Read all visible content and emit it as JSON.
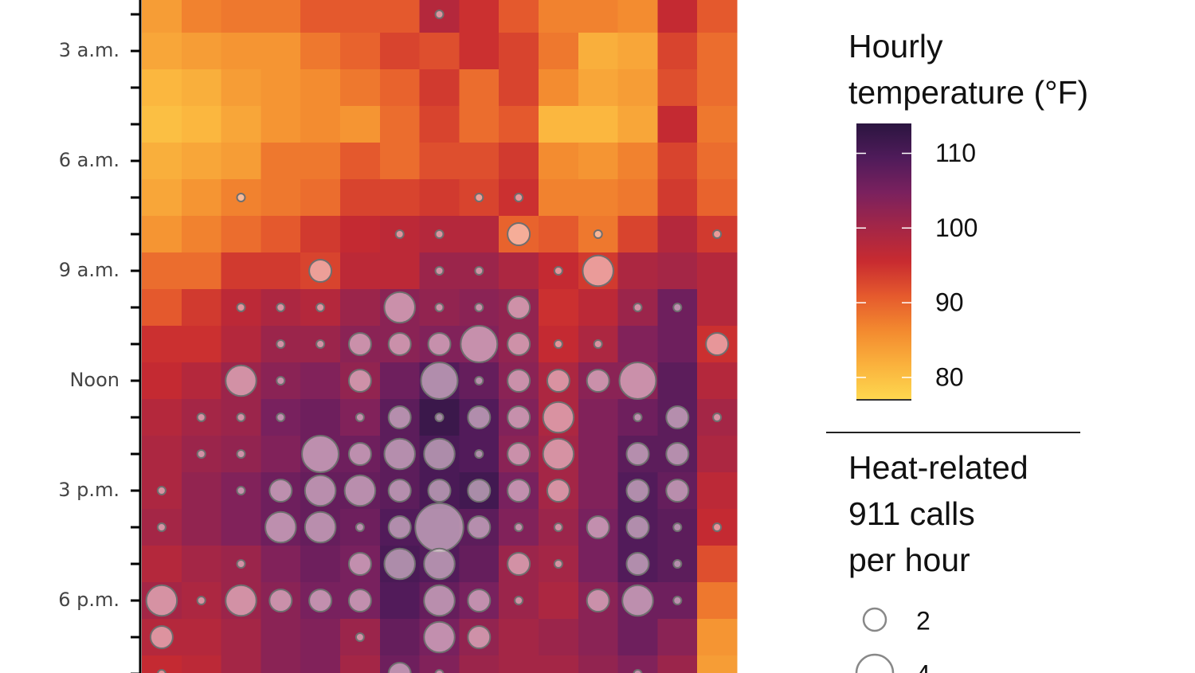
{
  "chart_data": {
    "type": "heatmap",
    "rows": [
      null,
      "3 a.m.",
      null,
      null,
      "6 a.m.",
      null,
      null,
      "9 a.m.",
      null,
      null,
      "Noon",
      null,
      null,
      "3 p.m.",
      null,
      null,
      "6 p.m.",
      null,
      null
    ],
    "columns": [
      null,
      null,
      null,
      null,
      null,
      null,
      null,
      null,
      null,
      null,
      null,
      null,
      null,
      null,
      null
    ],
    "values": [
      [
        84,
        87,
        88,
        88,
        91,
        91,
        91,
        98,
        95,
        91,
        87,
        87,
        86,
        96,
        91
      ],
      [
        83,
        84,
        85,
        85,
        88,
        90,
        93,
        92,
        95,
        93,
        88,
        82,
        83,
        93,
        89
      ],
      [
        81,
        82,
        84,
        85,
        86,
        88,
        90,
        94,
        89,
        93,
        86,
        83,
        84,
        92,
        89
      ],
      [
        80,
        81,
        83,
        85,
        86,
        85,
        89,
        93,
        89,
        91,
        81,
        81,
        83,
        96,
        88
      ],
      [
        82,
        83,
        84,
        88,
        88,
        91,
        89,
        92,
        92,
        94,
        86,
        85,
        87,
        93,
        89
      ],
      [
        83,
        85,
        87,
        88,
        89,
        93,
        93,
        94,
        93,
        95,
        87,
        87,
        88,
        94,
        90
      ],
      [
        85,
        87,
        89,
        91,
        94,
        96,
        97,
        98,
        98,
        90,
        91,
        88,
        93,
        98,
        94
      ],
      [
        89,
        89,
        94,
        94,
        93,
        97,
        97,
        101,
        101,
        99,
        96,
        94,
        99,
        100,
        98
      ],
      [
        91,
        94,
        97,
        99,
        98,
        101,
        103,
        102,
        103,
        102,
        95,
        97,
        101,
        106,
        98
      ],
      [
        95,
        95,
        98,
        101,
        101,
        103,
        103,
        104,
        104,
        102,
        96,
        99,
        104,
        106,
        95
      ],
      [
        96,
        98,
        101,
        103,
        104,
        102,
        106,
        109,
        107,
        103,
        99,
        103,
        103,
        108,
        98
      ],
      [
        98,
        100,
        101,
        105,
        106,
        104,
        108,
        112,
        109,
        104,
        99,
        104,
        106,
        108,
        100
      ],
      [
        99,
        101,
        102,
        104,
        106,
        106,
        108,
        110,
        109,
        103,
        100,
        104,
        108,
        108,
        99
      ],
      [
        99,
        102,
        104,
        106,
        107,
        107,
        108,
        110,
        111,
        105,
        100,
        104,
        109,
        107,
        97
      ],
      [
        100,
        102,
        104,
        106,
        107,
        106,
        109,
        109,
        108,
        104,
        101,
        105,
        109,
        108,
        96
      ],
      [
        98,
        100,
        101,
        104,
        106,
        105,
        110,
        109,
        107,
        101,
        100,
        105,
        109,
        108,
        92
      ],
      [
        100,
        99,
        101,
        103,
        105,
        105,
        109,
        107,
        105,
        101,
        99,
        103,
        106,
        106,
        88
      ],
      [
        98,
        98,
        100,
        103,
        104,
        101,
        107,
        105,
        102,
        100,
        101,
        103,
        106,
        103,
        85
      ],
      [
        96,
        97,
        100,
        103,
        104,
        100,
        106,
        104,
        101,
        100,
        100,
        102,
        104,
        101,
        84
      ]
    ],
    "calls": [
      [
        0,
        0,
        0,
        0,
        0,
        0,
        0,
        1,
        0,
        0,
        0,
        0,
        0,
        0,
        0
      ],
      [
        0,
        0,
        0,
        0,
        0,
        0,
        0,
        0,
        0,
        0,
        0,
        0,
        0,
        0,
        0
      ],
      [
        0,
        0,
        0,
        0,
        0,
        0,
        0,
        0,
        0,
        0,
        0,
        0,
        0,
        0,
        0
      ],
      [
        0,
        0,
        0,
        0,
        0,
        0,
        0,
        0,
        0,
        0,
        0,
        0,
        0,
        0,
        0
      ],
      [
        0,
        0,
        0,
        0,
        0,
        0,
        0,
        0,
        0,
        0,
        0,
        0,
        0,
        0,
        0
      ],
      [
        0,
        0,
        1,
        0,
        0,
        0,
        0,
        0,
        1,
        1,
        0,
        0,
        0,
        0,
        0
      ],
      [
        0,
        0,
        0,
        0,
        0,
        0,
        1,
        1,
        0,
        2,
        0,
        1,
        0,
        0,
        1
      ],
      [
        0,
        0,
        0,
        0,
        2,
        0,
        0,
        1,
        1,
        0,
        1,
        3,
        0,
        0,
        0
      ],
      [
        0,
        0,
        1,
        1,
        1,
        0,
        3,
        1,
        1,
        2,
        0,
        0,
        1,
        1,
        0
      ],
      [
        0,
        0,
        0,
        1,
        1,
        2,
        2,
        2,
        4,
        2,
        1,
        1,
        0,
        0,
        2
      ],
      [
        0,
        0,
        3,
        1,
        0,
        2,
        0,
        4,
        1,
        2,
        2,
        2,
        4,
        0,
        0
      ],
      [
        0,
        1,
        1,
        1,
        0,
        1,
        2,
        1,
        2,
        2,
        3,
        0,
        1,
        2,
        1
      ],
      [
        0,
        1,
        1,
        0,
        4,
        2,
        3,
        3,
        1,
        2,
        3,
        0,
        2,
        2,
        0
      ],
      [
        1,
        0,
        1,
        2,
        3,
        3,
        2,
        2,
        2,
        2,
        2,
        0,
        2,
        2,
        0
      ],
      [
        1,
        0,
        0,
        3,
        3,
        1,
        2,
        7,
        2,
        1,
        1,
        2,
        2,
        1,
        1
      ],
      [
        0,
        0,
        1,
        0,
        0,
        2,
        3,
        3,
        0,
        2,
        1,
        0,
        2,
        1,
        0
      ],
      [
        3,
        1,
        3,
        2,
        2,
        2,
        0,
        3,
        2,
        1,
        0,
        2,
        3,
        1,
        0
      ],
      [
        2,
        0,
        0,
        0,
        0,
        1,
        0,
        3,
        2,
        0,
        0,
        0,
        0,
        0,
        0
      ],
      [
        1,
        0,
        0,
        0,
        0,
        0,
        2,
        1,
        0,
        0,
        0,
        0,
        1,
        0,
        0
      ]
    ],
    "colors": [
      "#fed84f",
      "#fab23d",
      "#f38a2f",
      "#e55a2d",
      "#c82b30",
      "#a32647",
      "#7a215e",
      "#4f1b5a",
      "#2b1540"
    ],
    "color_title": [
      "Hourly",
      "temperature (°F)"
    ],
    "colorlim": [
      77,
      114
    ],
    "colorticks": [
      80,
      90,
      100,
      110
    ],
    "size_title": [
      "Heat-related",
      "911 calls",
      "per hour"
    ],
    "size_legend": [
      2,
      4
    ]
  }
}
